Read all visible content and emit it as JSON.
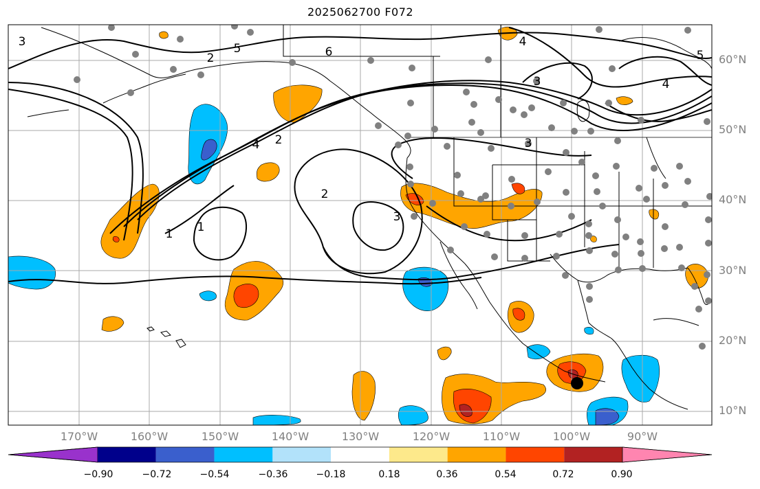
{
  "title": "2025062700 F072",
  "map": {
    "lat_labels": [
      {
        "text": "60°N"
      },
      {
        "text": "50°N"
      },
      {
        "text": "40°N"
      },
      {
        "text": "30°N"
      },
      {
        "text": "20°N"
      },
      {
        "text": "10°N"
      }
    ],
    "lon_labels": [
      {
        "text": "170°W"
      },
      {
        "text": "160°W"
      },
      {
        "text": "150°W"
      },
      {
        "text": "140°W"
      },
      {
        "text": "130°W"
      },
      {
        "text": "120°W"
      },
      {
        "text": "110°W"
      },
      {
        "text": "100°W"
      },
      {
        "text": "90°W"
      }
    ],
    "contour_labels": [
      "3",
      "2",
      "5",
      "6",
      "4",
      "3",
      "4",
      "5",
      "2",
      "4",
      "2",
      "3",
      "1",
      "1",
      "3"
    ],
    "gridlines": true,
    "coastlines": true
  },
  "colorbar": {
    "colors": [
      "#9932cc",
      "#00008b",
      "#3a5fcd",
      "#00bfff",
      "#b2e2fa",
      "#ffffff",
      "#fde98b",
      "#ffa500",
      "#ff4500",
      "#b22222",
      "#ff85b0"
    ],
    "tick_labels": [
      "−0.90",
      "−0.72",
      "−0.54",
      "−0.36",
      "−0.18",
      "0.18",
      "0.36",
      "0.54",
      "0.72",
      "0.90"
    ]
  }
}
